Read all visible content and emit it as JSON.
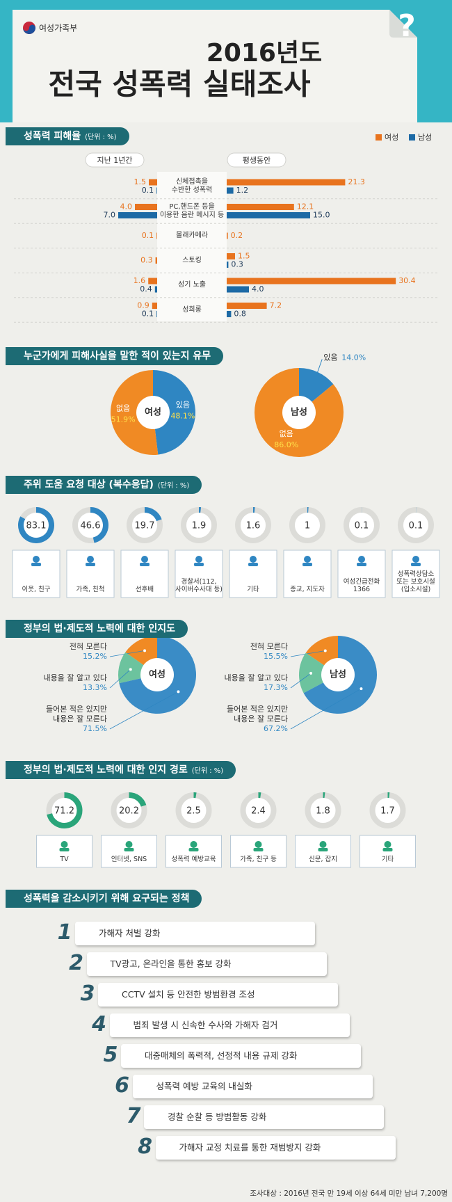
{
  "header": {
    "logo": "여성가족부",
    "title_line1": "2016년도",
    "title_line2": "전국 성폭력 실태조사"
  },
  "chart_data": [
    {
      "type": "diverging-bar",
      "title": "성폭력 피해율",
      "unit": "(단위 : %)",
      "series": [
        {
          "name": "여성",
          "color": "#e8731e"
        },
        {
          "name": "남성",
          "color": "#1d6aa5"
        }
      ],
      "categories": [
        "신체접촉을\n수반한 성폭력",
        "PC,핸드폰 등을\n이용한 음란 메시지 등",
        "몰래카메라",
        "스토킹",
        "성기 노출",
        "성희롱"
      ],
      "panels": [
        {
          "label": "지난 1년간",
          "side": "left",
          "values": [
            [
              1.5,
              4.0,
              0.1,
              0.3,
              1.6,
              0.9
            ],
            [
              0.1,
              7.0,
              null,
              null,
              0.4,
              0.1
            ]
          ],
          "value_labels": [
            [
              "1.5",
              "4.0",
              "0.1",
              "0.3",
              "1.6",
              "0.9"
            ],
            [
              "0.1",
              "7.0",
              null,
              null,
              "0.4",
              "0.1"
            ]
          ]
        },
        {
          "label": "평생동안",
          "side": "right",
          "values": [
            [
              21.3,
              12.1,
              0.2,
              1.5,
              30.4,
              7.2
            ],
            [
              1.2,
              15.0,
              null,
              0.3,
              4.0,
              0.8
            ]
          ],
          "value_labels": [
            [
              "21.3",
              "12.1",
              "0.2",
              "1.5",
              "30.4",
              "7.2"
            ],
            [
              "1.2",
              "15.0",
              null,
              "0.3",
              "4.0",
              "0.8"
            ]
          ]
        }
      ]
    },
    {
      "type": "donut",
      "labels": "inside",
      "title": "누군가에게 피해사실을 말한 적이 있는지 유무",
      "categories": [
        "있음",
        "없음"
      ],
      "colors": [
        "#2f86c2",
        "#f08a24"
      ],
      "pies": [
        {
          "label": "여성",
          "values": [
            48.1,
            51.9
          ],
          "value_labels": [
            "48.1%",
            "51.9%"
          ]
        },
        {
          "label": "남성",
          "values": [
            14.0,
            86.0
          ],
          "value_labels": [
            "14.0%",
            "86.0%"
          ]
        }
      ]
    },
    {
      "type": "ring",
      "title": "주위 도움 요청 대상 (복수응답)",
      "unit": "(단위 : %)",
      "color": "#2f86c2",
      "categories": [
        "이웃, 친구",
        "가족, 친척",
        "선후배",
        "경찰서(112,\n사이버수사대 등)",
        "기타",
        "종교, 지도자",
        "여성긴급전화\n1366",
        "성폭력상담소\n또는 보호시설\n(입소시설)"
      ],
      "values": [
        83.1,
        46.6,
        19.7,
        1.9,
        1.6,
        1,
        0.1,
        0.1
      ]
    },
    {
      "type": "donut",
      "labels": "left",
      "title": "정부의 법·제도적 노력에 대한 인지도",
      "categories": [
        "전혀 모른다",
        "내용을 잘 알고 있다",
        "들어본 적은 있지만\n내용은 잘 모른다"
      ],
      "colors": [
        "#f08a24",
        "#6cc39e",
        "#3a8cc6"
      ],
      "pies": [
        {
          "label": "여성",
          "values": [
            15.2,
            13.3,
            71.5
          ],
          "value_labels": [
            "15.2%",
            "13.3%",
            "71.5%"
          ]
        },
        {
          "label": "남성",
          "values": [
            15.5,
            17.3,
            67.2
          ],
          "value_labels": [
            "15.5%",
            "17.3%",
            "67.2%"
          ]
        }
      ]
    },
    {
      "type": "ring",
      "title": "정부의 법·제도적 노력에 대한 인지 경로",
      "unit": "(단위 : %)",
      "color": "#2aa57a",
      "categories": [
        "TV",
        "인터넷, SNS",
        "성폭력 예방교육",
        "가족, 친구 등",
        "신문, 잡지",
        "기타"
      ],
      "values": [
        71.2,
        20.2,
        2.5,
        2.4,
        1.8,
        1.7
      ]
    }
  ],
  "policies": {
    "title": "성폭력을 감소시키기 위해 요구되는 정책",
    "items": [
      {
        "rank": 1,
        "text": "가해자 처벌 강화"
      },
      {
        "rank": 2,
        "text": "TV광고, 온라인을 통한 홍보 강화"
      },
      {
        "rank": 3,
        "text": "CCTV 설치 등 안전한 방범환경 조성"
      },
      {
        "rank": 4,
        "text": "범죄 발생 시 신속한 수사와 가해자 검거"
      },
      {
        "rank": 5,
        "text": "대중매체의 폭력적, 선정적 내용 규제 강화"
      },
      {
        "rank": 6,
        "text": "성폭력 예방 교육의 내실화"
      },
      {
        "rank": 7,
        "text": "경찰 순찰 등 방범활동 강화"
      },
      {
        "rank": 8,
        "text": "가해자 교정 치료를 통한 재범방지 강화"
      }
    ]
  },
  "footer": {
    "note": "조사대상 : 2016년 전국 만 19세 이상 64세 미만 남녀 7,200명"
  }
}
